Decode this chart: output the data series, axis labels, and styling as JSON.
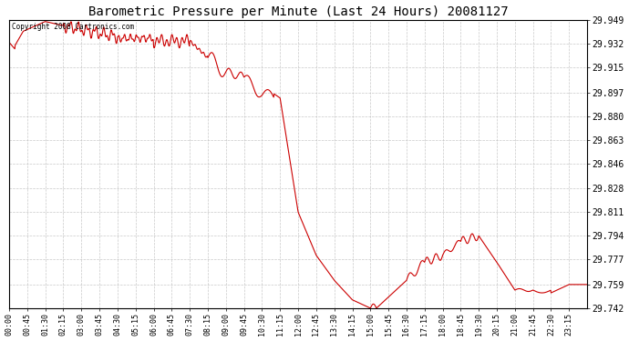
{
  "title": "Barometric Pressure per Minute (Last 24 Hours) 20081127",
  "copyright": "Copyright 2008 Cartronics.com",
  "line_color": "#cc0000",
  "bg_color": "#ffffff",
  "plot_bg_color": "#ffffff",
  "grid_color": "#bbbbbb",
  "ylim": [
    29.742,
    29.949
  ],
  "yticks": [
    29.742,
    29.759,
    29.777,
    29.794,
    29.811,
    29.828,
    29.846,
    29.863,
    29.88,
    29.897,
    29.915,
    29.932,
    29.949
  ],
  "xtick_labels": [
    "00:00",
    "00:45",
    "01:30",
    "02:15",
    "03:00",
    "03:45",
    "04:30",
    "05:15",
    "06:00",
    "06:45",
    "07:30",
    "08:15",
    "09:00",
    "09:45",
    "10:30",
    "11:15",
    "12:00",
    "12:45",
    "13:30",
    "14:15",
    "15:00",
    "15:45",
    "16:30",
    "17:15",
    "18:00",
    "18:45",
    "19:30",
    "20:15",
    "21:00",
    "21:45",
    "22:30",
    "23:15"
  ],
  "title_fontsize": 10,
  "tick_fontsize": 7
}
